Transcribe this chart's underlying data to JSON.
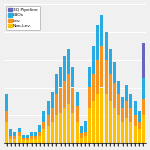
{
  "legend_labels": [
    "3Q Pipeline",
    "LBOs",
    "Lev.",
    "Non-Lev."
  ],
  "legend_colors": [
    "#6666bb",
    "#29abe2",
    "#f7941d",
    "#ffc000"
  ],
  "bar_colors": {
    "pipeline": "#6666bb",
    "lbo": "#29abe2",
    "lev": "#f7941d",
    "nonlev": "#ffc000"
  },
  "n_bars": 34,
  "data": {
    "nonlev": [
      1.5,
      0.3,
      0.3,
      0.5,
      0.2,
      0.2,
      0.3,
      0.3,
      0.5,
      1.0,
      1.2,
      1.5,
      2.0,
      2.2,
      2.5,
      2.8,
      2.2,
      1.5,
      0.4,
      0.5,
      2.5,
      3.0,
      3.5,
      4.0,
      3.5,
      3.0,
      2.5,
      2.0,
      1.5,
      1.8,
      1.5,
      1.2,
      1.0,
      2.0
    ],
    "lev": [
      0.8,
      0.2,
      0.2,
      0.3,
      0.2,
      0.2,
      0.2,
      0.2,
      0.3,
      0.5,
      0.8,
      1.0,
      1.5,
      1.8,
      2.0,
      2.2,
      1.8,
      1.2,
      0.3,
      0.3,
      1.5,
      2.0,
      2.5,
      3.0,
      2.5,
      2.0,
      1.8,
      1.5,
      1.0,
      1.2,
      1.0,
      0.8,
      0.5,
      1.2
    ],
    "lbo": [
      1.2,
      0.5,
      0.3,
      0.3,
      0.2,
      0.2,
      0.3,
      0.3,
      0.5,
      0.8,
      1.0,
      1.2,
      1.5,
      1.5,
      1.8,
      1.8,
      1.5,
      1.0,
      0.5,
      0.8,
      1.5,
      2.0,
      2.5,
      2.2,
      2.0,
      1.8,
      1.5,
      1.0,
      0.8,
      1.2,
      1.0,
      1.0,
      0.8,
      1.5
    ],
    "pipeline": [
      0,
      0,
      0,
      0,
      0,
      0,
      0,
      0,
      0,
      0,
      0,
      0,
      0,
      0,
      0,
      0,
      0,
      0,
      0,
      0,
      0,
      0,
      0,
      0,
      0,
      0,
      0,
      0,
      0,
      0,
      0,
      0,
      0,
      2.5
    ]
  },
  "ylim": [
    0,
    10
  ],
  "background_color": "#f0f0f0",
  "grid_color": "#ffffff",
  "bar_width": 0.75,
  "figsize": [
    1.5,
    1.5
  ],
  "dpi": 100
}
